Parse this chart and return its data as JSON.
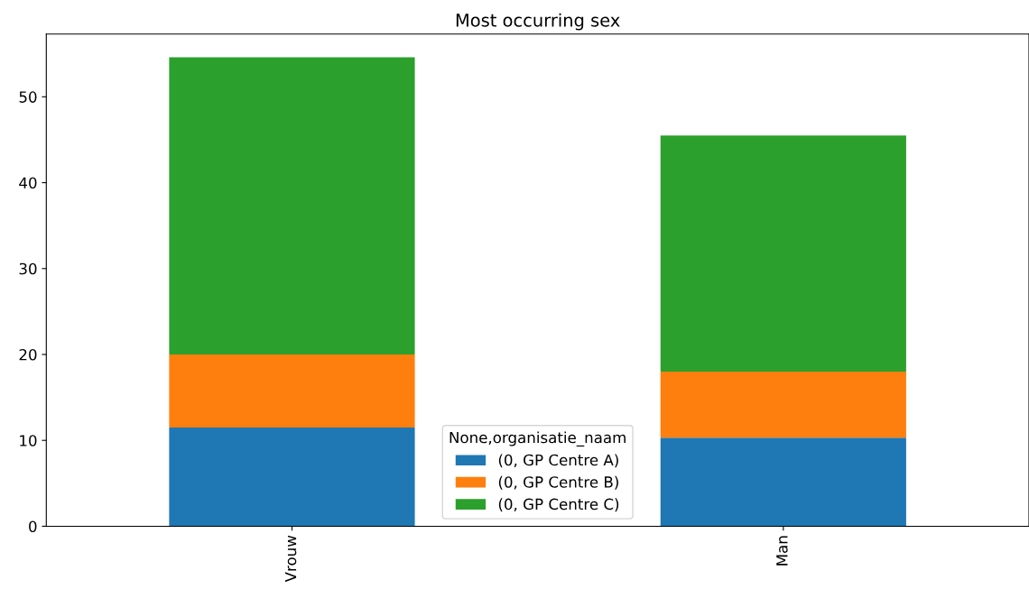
{
  "chart_data": {
    "type": "bar",
    "title": "Most occurring sex",
    "stacked": true,
    "categories": [
      "Vrouw",
      "Man"
    ],
    "series": [
      {
        "name": "(0, GP Centre A)",
        "color": "#1f77b4",
        "values": [
          11.5,
          10.3
        ]
      },
      {
        "name": "(0, GP Centre B)",
        "color": "#ff7f0e",
        "values": [
          8.5,
          7.7
        ]
      },
      {
        "name": "(0, GP Centre C)",
        "color": "#2ca02c",
        "values": [
          34.6,
          27.5
        ]
      }
    ],
    "legend_title": "None,organisatie_naam",
    "legend": "bottom",
    "ylim": [
      0,
      57.3
    ],
    "yticks": [
      0,
      10,
      20,
      30,
      40,
      50
    ],
    "grid": false
  }
}
